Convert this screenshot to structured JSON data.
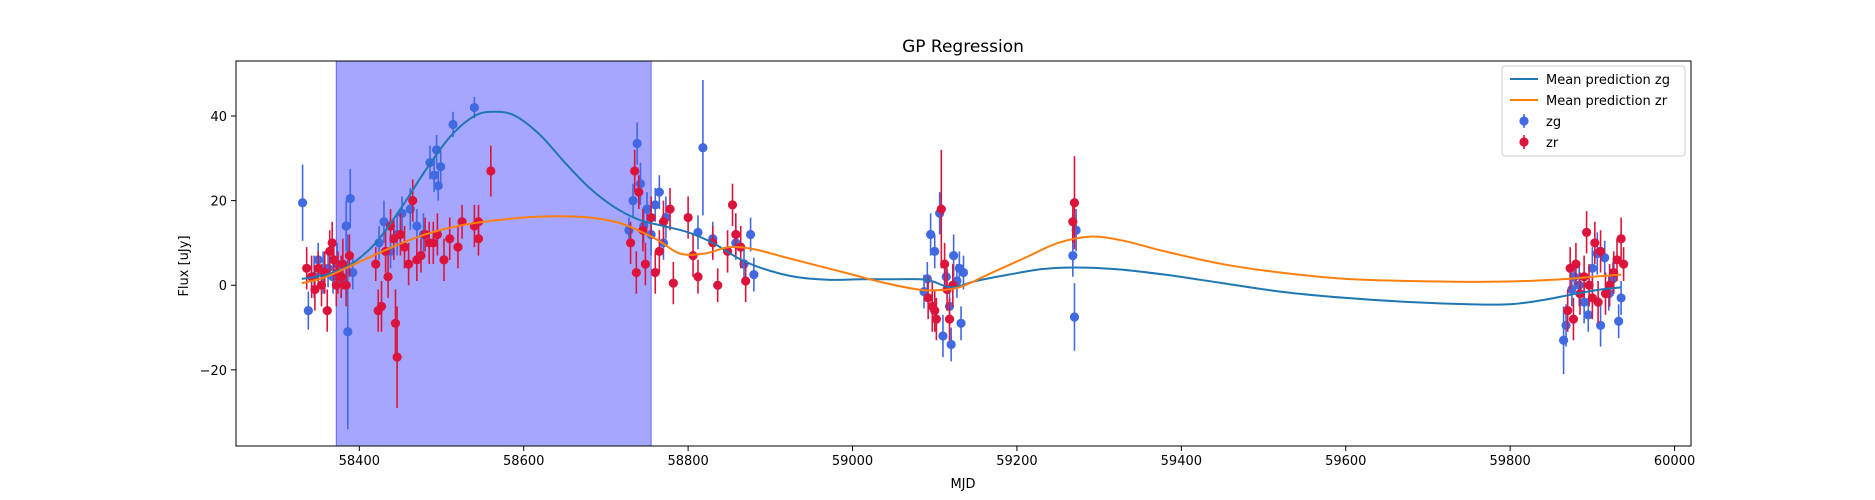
{
  "chart_data": {
    "type": "scatter",
    "title": "GP Regression",
    "xlabel": "MJD",
    "ylabel": "Flux [uJy]",
    "xlim": [
      58250,
      60020
    ],
    "ylim": [
      -38,
      53
    ],
    "xticks": [
      58400,
      58600,
      58800,
      59000,
      59200,
      59400,
      59600,
      59800,
      60000
    ],
    "yticks": [
      -20,
      0,
      20,
      40
    ],
    "grid": false,
    "legend_position": "top-right",
    "highlight_span": {
      "x0": 58372,
      "x1": 58755,
      "color": "#a6a6ff"
    },
    "series": [
      {
        "name": "Mean prediction zg",
        "kind": "line",
        "color": "#1f77b4",
        "x": [
          58330,
          58360,
          58390,
          58420,
          58450,
          58480,
          58510,
          58540,
          58565,
          58590,
          58620,
          58650,
          58680,
          58710,
          58740,
          58770,
          58800,
          58830,
          58860,
          58890,
          58930,
          58970,
          59010,
          59050,
          59090,
          59120,
          59150,
          59190,
          59230,
          59270,
          59320,
          59380,
          59450,
          59520,
          59600,
          59680,
          59750,
          59800,
          59840,
          59880,
          59910,
          59935
        ],
        "y": [
          1.5,
          2.5,
          5,
          10,
          18,
          27,
          35,
          40,
          41,
          40,
          35.5,
          29,
          23,
          18.5,
          15.5,
          14,
          12.5,
          10,
          6.5,
          4,
          2,
          1.3,
          1.4,
          1.4,
          1.3,
          -0.5,
          1,
          2.5,
          3.8,
          4.2,
          3.8,
          2.5,
          0.5,
          -1.5,
          -3,
          -4,
          -4.5,
          -4.5,
          -3.5,
          -2,
          -1,
          -0.5
        ]
      },
      {
        "name": "Mean prediction zr",
        "kind": "line",
        "color": "#ff7f0e",
        "x": [
          58330,
          58360,
          58400,
          58440,
          58480,
          58520,
          58560,
          58600,
          58640,
          58680,
          58720,
          58760,
          58790,
          58820,
          58850,
          58880,
          58920,
          58960,
          59000,
          59040,
          59080,
          59100,
          59130,
          59170,
          59210,
          59250,
          59290,
          59330,
          59380,
          59450,
          59520,
          59600,
          59680,
          59760,
          59820,
          59870,
          59900,
          59935
        ],
        "y": [
          0.5,
          2,
          5.5,
          9,
          12,
          14,
          15.2,
          16,
          16.3,
          16,
          14.5,
          11,
          7.5,
          7.5,
          9,
          8.5,
          6.5,
          4.5,
          2.5,
          0.5,
          -1,
          -1.2,
          -0.5,
          3,
          6.5,
          10,
          11.5,
          10.5,
          8,
          5,
          3,
          1.5,
          1,
          0.8,
          1,
          1.5,
          2,
          2.5
        ]
      },
      {
        "name": "zg",
        "kind": "errorbar",
        "color": "#4169e1",
        "points": [
          [
            58331,
            19.5,
            9
          ],
          [
            58338,
            -6,
            4.5
          ],
          [
            58345,
            2,
            5
          ],
          [
            58350,
            6,
            4
          ],
          [
            58356,
            3,
            5
          ],
          [
            58362,
            4,
            4.5
          ],
          [
            58368,
            2,
            4
          ],
          [
            58373,
            5,
            5
          ],
          [
            58378,
            1,
            4
          ],
          [
            58384,
            14,
            6
          ],
          [
            58386,
            -11,
            23
          ],
          [
            58389,
            20.5,
            7
          ],
          [
            58392,
            3,
            4
          ],
          [
            58424,
            10,
            4
          ],
          [
            58430,
            15,
            5
          ],
          [
            58438,
            8,
            4
          ],
          [
            58446,
            12,
            5
          ],
          [
            58452,
            17,
            4
          ],
          [
            58462,
            18,
            5
          ],
          [
            58470,
            14,
            4
          ],
          [
            58478,
            12,
            5
          ],
          [
            58486,
            29,
            4
          ],
          [
            58491,
            26,
            4
          ],
          [
            58494,
            32,
            3.5
          ],
          [
            58496,
            23.5,
            3.5
          ],
          [
            58499,
            28,
            4
          ],
          [
            58514,
            38,
            3
          ],
          [
            58540,
            42,
            2.5
          ],
          [
            58728,
            13,
            3
          ],
          [
            58733,
            20,
            4
          ],
          [
            58738,
            33.5,
            5
          ],
          [
            58742,
            24,
            5
          ],
          [
            58746,
            14,
            4
          ],
          [
            58750,
            18,
            4
          ],
          [
            58755,
            12,
            5
          ],
          [
            58760,
            19,
            4
          ],
          [
            58765,
            22,
            4
          ],
          [
            58770,
            10,
            4
          ],
          [
            58773,
            16,
            5
          ],
          [
            58812,
            12.5,
            4
          ],
          [
            58818,
            32.5,
            16
          ],
          [
            58830,
            11,
            4
          ],
          [
            58858,
            10,
            4
          ],
          [
            58868,
            5,
            4
          ],
          [
            58876,
            12,
            4
          ],
          [
            58880,
            2.5,
            4
          ],
          [
            59087,
            -1.5,
            4
          ],
          [
            59091,
            1.5,
            4
          ],
          [
            59095,
            12,
            5
          ],
          [
            59100,
            8,
            4
          ],
          [
            59106,
            17,
            5
          ],
          [
            59110,
            -12,
            5
          ],
          [
            59114,
            2,
            4
          ],
          [
            59118,
            -5,
            4
          ],
          [
            59120,
            -14,
            4
          ],
          [
            59123,
            7,
            5
          ],
          [
            59127,
            1,
            4
          ],
          [
            59130,
            4,
            4
          ],
          [
            59132,
            -9,
            4
          ],
          [
            59135,
            3,
            4
          ],
          [
            59268,
            7,
            5
          ],
          [
            59270,
            -7.5,
            8
          ],
          [
            59272,
            13,
            5
          ],
          [
            59865,
            -13,
            8
          ],
          [
            59868,
            -9.5,
            5
          ],
          [
            59875,
            -1,
            4
          ],
          [
            59878,
            2,
            4
          ],
          [
            59884,
            0,
            5
          ],
          [
            59890,
            -4,
            5
          ],
          [
            59895,
            -7,
            4
          ],
          [
            59900,
            4,
            5
          ],
          [
            59906,
            7.5,
            5
          ],
          [
            59910,
            -9.5,
            5
          ],
          [
            59915,
            6.5,
            4
          ],
          [
            59920,
            -2,
            4
          ],
          [
            59925,
            1.5,
            4
          ],
          [
            59932,
            -8.5,
            4
          ],
          [
            59935,
            -3,
            4
          ]
        ]
      },
      {
        "name": "zr",
        "kind": "errorbar",
        "color": "#dc143c",
        "points": [
          [
            58336,
            4,
            5
          ],
          [
            58342,
            2,
            5
          ],
          [
            58346,
            -1,
            5
          ],
          [
            58350,
            4,
            4
          ],
          [
            58354,
            0,
            5
          ],
          [
            58358,
            3,
            5
          ],
          [
            58361,
            -6,
            5
          ],
          [
            58364,
            8,
            5
          ],
          [
            58367,
            10,
            5
          ],
          [
            58369,
            6,
            5
          ],
          [
            58372,
            0,
            5
          ],
          [
            58374,
            3,
            5
          ],
          [
            58378,
            2,
            5
          ],
          [
            58380,
            5,
            6
          ],
          [
            58384,
            0,
            5
          ],
          [
            58388,
            7,
            5
          ],
          [
            58420,
            5,
            4
          ],
          [
            58423,
            -6,
            5
          ],
          [
            58427,
            -5,
            6
          ],
          [
            58432,
            8,
            5
          ],
          [
            58435,
            2,
            5
          ],
          [
            58438,
            14,
            4
          ],
          [
            58442,
            11,
            5
          ],
          [
            58444,
            -9,
            8
          ],
          [
            58446,
            -17,
            12
          ],
          [
            58450,
            12,
            5
          ],
          [
            58455,
            9,
            5
          ],
          [
            58460,
            5,
            5
          ],
          [
            58465,
            20,
            5
          ],
          [
            58470,
            6,
            5
          ],
          [
            58475,
            7,
            4
          ],
          [
            58480,
            12,
            4
          ],
          [
            58485,
            10,
            5
          ],
          [
            58490,
            10,
            5
          ],
          [
            58495,
            12,
            5
          ],
          [
            58503,
            6,
            5
          ],
          [
            58510,
            11,
            5
          ],
          [
            58520,
            9,
            5
          ],
          [
            58525,
            15,
            4
          ],
          [
            58540,
            14,
            5
          ],
          [
            58545,
            15,
            4
          ],
          [
            58545,
            11,
            4
          ],
          [
            58560,
            27,
            6
          ],
          [
            58730,
            10,
            5
          ],
          [
            58735,
            27,
            5
          ],
          [
            58737,
            3,
            5
          ],
          [
            58740,
            22,
            4
          ],
          [
            58745,
            13,
            5
          ],
          [
            58748,
            5,
            5
          ],
          [
            58755,
            16,
            5
          ],
          [
            58760,
            3,
            5
          ],
          [
            58765,
            8,
            5
          ],
          [
            58770,
            15,
            5
          ],
          [
            58778,
            18,
            5
          ],
          [
            58782,
            0.5,
            5
          ],
          [
            58800,
            16,
            5
          ],
          [
            58806,
            7,
            5
          ],
          [
            58812,
            2,
            4
          ],
          [
            58830,
            10,
            4
          ],
          [
            58836,
            0,
            4
          ],
          [
            58848,
            8,
            5
          ],
          [
            58854,
            19,
            5
          ],
          [
            58858,
            12,
            5
          ],
          [
            58864,
            9,
            5
          ],
          [
            58870,
            1,
            5
          ],
          [
            59092,
            -3,
            5
          ],
          [
            59097,
            -5,
            6
          ],
          [
            59100,
            -6,
            5
          ],
          [
            59102,
            -8,
            5
          ],
          [
            59108,
            18,
            14
          ],
          [
            59112,
            5,
            5
          ],
          [
            59115,
            -1,
            5
          ],
          [
            59118,
            -8,
            5
          ],
          [
            59122,
            0,
            5
          ],
          [
            59268,
            15,
            5
          ],
          [
            59270,
            19.5,
            11
          ],
          [
            59870,
            -6,
            5
          ],
          [
            59873,
            4,
            5
          ],
          [
            59877,
            -8,
            5
          ],
          [
            59880,
            5,
            5
          ],
          [
            59885,
            -2,
            5
          ],
          [
            59890,
            2,
            5
          ],
          [
            59893,
            12.5,
            5
          ],
          [
            59896,
            0,
            5
          ],
          [
            59900,
            -3,
            5
          ],
          [
            59903,
            10,
            5
          ],
          [
            59907,
            -4,
            5
          ],
          [
            59910,
            8,
            5
          ],
          [
            59916,
            -2,
            5
          ],
          [
            59921,
            0,
            5
          ],
          [
            59926,
            3,
            5
          ],
          [
            59930,
            6,
            5
          ],
          [
            59935,
            11,
            5
          ],
          [
            59938,
            5,
            4
          ]
        ]
      }
    ]
  }
}
